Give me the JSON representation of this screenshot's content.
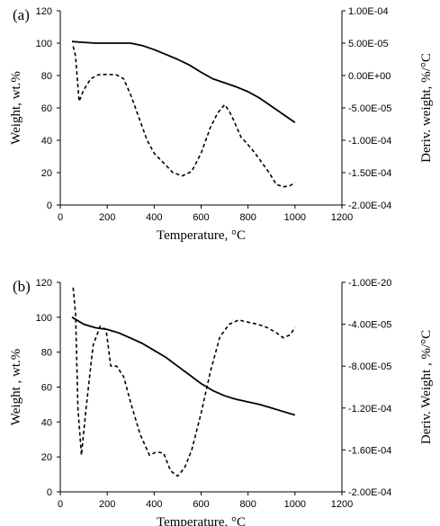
{
  "chart_data": [
    {
      "type": "line",
      "panel_label": "(a)",
      "xlabel": "Temperature, °C",
      "ylabel": "Weight, wt.%",
      "y2label": "Deriv. weight, %/°C",
      "xlim": [
        0,
        1200
      ],
      "ylim": [
        0,
        120
      ],
      "y2lim": [
        -0.0002,
        0.0001
      ],
      "x_ticks": [
        "0",
        "200",
        "400",
        "600",
        "800",
        "1000",
        "1200"
      ],
      "y_ticks": [
        "0",
        "20",
        "40",
        "60",
        "80",
        "100",
        "120"
      ],
      "y2_ticks": [
        "-2.00E-04",
        "-1.50E-04",
        "-1.00E-04",
        "-5.00E-05",
        "0.00E+00",
        "5.00E-05",
        "1.00E-04"
      ],
      "grid": false,
      "series": [
        {
          "style": "solid",
          "axis": "left",
          "x": [
            50,
            100,
            150,
            200,
            250,
            300,
            350,
            400,
            450,
            500,
            550,
            600,
            650,
            700,
            750,
            800,
            850,
            900,
            950,
            1000
          ],
          "y": [
            101,
            100.5,
            100,
            100,
            100,
            100,
            98.5,
            96,
            93,
            90,
            86.5,
            82,
            78,
            75.5,
            73,
            70,
            66,
            61,
            56,
            51
          ]
        },
        {
          "style": "dashed",
          "axis": "right",
          "x": [
            55,
            65,
            80,
            100,
            130,
            160,
            200,
            240,
            270,
            300,
            330,
            370,
            400,
            440,
            480,
            520,
            560,
            600,
            640,
            670,
            700,
            720,
            740,
            770,
            800,
            830,
            860,
            890,
            920,
            950,
            980,
            1000
          ],
          "y": [
            4.5e-05,
            3e-05,
            -4e-05,
            -2.2e-05,
            -5e-06,
            1e-06,
            2e-06,
            1e-06,
            -5e-06,
            -3e-05,
            -6e-05,
            -0.0001,
            -0.00012,
            -0.000135,
            -0.00015,
            -0.000155,
            -0.000148,
            -0.00012,
            -8e-05,
            -5.8e-05,
            -4.5e-05,
            -5.5e-05,
            -7e-05,
            -9.5e-05,
            -0.000107,
            -0.00012,
            -0.000135,
            -0.00015,
            -0.000168,
            -0.000172,
            -0.00017,
            -0.000165
          ]
        }
      ]
    },
    {
      "type": "line",
      "panel_label": "(b)",
      "xlabel": "Temperature, °C",
      "ylabel": "Weight , wt.%",
      "y2label": "Deriv. Weight , %/°C",
      "xlim": [
        0,
        1200
      ],
      "ylim": [
        0,
        120
      ],
      "y2lim": [
        -0.0002,
        0
      ],
      "x_ticks": [
        "0",
        "200",
        "400",
        "600",
        "800",
        "1000",
        "1200"
      ],
      "y_ticks": [
        "0",
        "20",
        "40",
        "60",
        "80",
        "100",
        "120"
      ],
      "y2_ticks": [
        "-2.00E-04",
        "-1.60E-04",
        "-1.20E-04",
        "-8.00E-05",
        "-4.00E-05",
        "-1.00E-20"
      ],
      "grid": false,
      "series": [
        {
          "style": "solid",
          "axis": "left",
          "x": [
            50,
            100,
            150,
            200,
            250,
            300,
            350,
            400,
            450,
            500,
            550,
            600,
            650,
            700,
            750,
            800,
            850,
            900,
            950,
            1000
          ],
          "y": [
            100,
            96,
            94,
            93,
            91,
            88,
            85,
            81,
            77,
            72,
            67,
            62,
            58,
            55,
            53,
            51.5,
            50,
            48,
            46,
            44
          ]
        },
        {
          "style": "dashed",
          "axis": "right",
          "x": [
            55,
            65,
            75,
            90,
            110,
            140,
            170,
            195,
            215,
            240,
            270,
            300,
            340,
            380,
            410,
            440,
            470,
            500,
            530,
            560,
            600,
            640,
            680,
            720,
            760,
            800,
            840,
            880,
            920,
            950,
            980,
            1000
          ],
          "y": [
            -5e-06,
            -3e-05,
            -0.00012,
            -0.000165,
            -0.00012,
            -6e-05,
            -4.2e-05,
            -4.5e-05,
            -8e-05,
            -8e-05,
            -9e-05,
            -0.000115,
            -0.000145,
            -0.000165,
            -0.000162,
            -0.000163,
            -0.00018,
            -0.000185,
            -0.000177,
            -0.00016,
            -0.000125,
            -8.5e-05,
            -5.2e-05,
            -4e-05,
            -3.6e-05,
            -3.8e-05,
            -4e-05,
            -4.3e-05,
            -4.8e-05,
            -5.3e-05,
            -5e-05,
            -4.3e-05
          ]
        }
      ]
    }
  ]
}
